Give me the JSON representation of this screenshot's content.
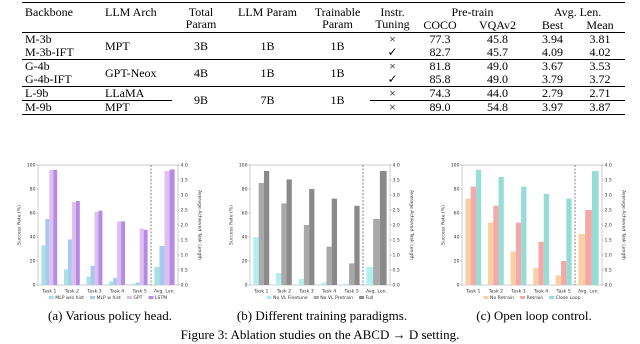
{
  "table": {
    "header": [
      "Backbone",
      "LLM Arch",
      "Total Param",
      "LLM Param",
      "Trainable Param",
      "Instr. Tuning",
      "Pre-train",
      "Avg. Len."
    ],
    "subheader": [
      "COCO",
      "VQAv2",
      "Best",
      "Mean"
    ],
    "groups": [
      [
        [
          "M-3b",
          "MPT",
          "3B",
          "1B",
          "1B",
          "×",
          "77.3",
          "45.8",
          "3.94",
          "3.81"
        ],
        [
          "M-3b-IFT",
          null,
          null,
          null,
          null,
          "✓",
          "82.7",
          "45.7",
          "4.09",
          "4.02"
        ]
      ],
      [
        [
          "G-4b",
          "GPT-Neox",
          "4B",
          "1B",
          "1B",
          "×",
          "81.8",
          "49.0",
          "3.67",
          "3.53"
        ],
        [
          "G-4b-IFT",
          null,
          null,
          null,
          null,
          "✓",
          "85.8",
          "49.0",
          "3.79",
          "3.72"
        ]
      ],
      [
        [
          "L-9b",
          "LLaMA",
          "9B",
          "7B",
          "1B",
          "×",
          "74.3",
          "44.0",
          "2.79",
          "2.71"
        ],
        [
          "M-9b",
          "MPT",
          null,
          null,
          null,
          "×",
          "89.0",
          "54.8",
          "3.97",
          "3.87"
        ]
      ]
    ]
  },
  "chart_data": [
    {
      "type": "bar",
      "caption": "(a) Various policy head.",
      "y_label": "Success Rate (%)",
      "y2_label": "Average Achieved Task Length",
      "categories": [
        "Task 1",
        "Task 2",
        "Task 3",
        "Task 4",
        "Task 5"
      ],
      "y2_category": "Avg. Len.",
      "ylim": [
        0,
        100
      ],
      "yticks": [
        0,
        20,
        40,
        60,
        80,
        100
      ],
      "y2lim": [
        0,
        4
      ],
      "y2ticks": [
        {
          "value": 0,
          "label": "0.0"
        },
        0.5,
        {
          "value": 1,
          "label": "1.0"
        },
        1.5,
        {
          "value": 2,
          "label": "2.0"
        },
        2.5,
        {
          "value": 3,
          "label": "3.0"
        },
        3.5,
        {
          "value": 4,
          "label": "4.0"
        }
      ],
      "series": [
        {
          "name": "MLP w/o hist",
          "color": "#a6e3df",
          "values": [
            33,
            13,
            7,
            3,
            1
          ],
          "y2_value": 0.6
        },
        {
          "name": "MLP w hist",
          "color": "#a9c8f0",
          "values": [
            55,
            38,
            16,
            6,
            2
          ],
          "y2_value": 1.3
        },
        {
          "name": "GPT",
          "color": "#dcc0f2",
          "values": [
            96,
            69,
            61,
            53,
            47
          ],
          "y2_value": 3.8
        },
        {
          "name": "LSTM",
          "color": "#b98ae3",
          "values": [
            96,
            70,
            62,
            53,
            46
          ],
          "y2_value": 3.85
        }
      ]
    },
    {
      "type": "bar",
      "caption": "(b) Different training paradigms.",
      "y_label": "Success Rate (%)",
      "y2_label": "Average Achieved Task Length",
      "categories": [
        "Task 1",
        "Task 2",
        "Task 3",
        "Task 4",
        "Task 5"
      ],
      "y2_category": "Avg. Len.",
      "ylim": [
        0,
        100
      ],
      "yticks": [
        0,
        20,
        40,
        60,
        80,
        100
      ],
      "y2lim": [
        0,
        4
      ],
      "y2ticks": [
        {
          "value": 0,
          "label": "0.0"
        },
        0.5,
        {
          "value": 1,
          "label": "1.0"
        },
        1.5,
        {
          "value": 2,
          "label": "2.0"
        },
        2.5,
        {
          "value": 3,
          "label": "3.0"
        },
        3.5,
        {
          "value": 4,
          "label": "4.0"
        }
      ],
      "series": [
        {
          "name": "No VL Finetune",
          "color": "#b2f0ef",
          "values": [
            40,
            10,
            5,
            2,
            1
          ],
          "y2_value": 0.6
        },
        {
          "name": "No VL Pretrain",
          "color": "#a9a9a9",
          "values": [
            85,
            68,
            50,
            32,
            18
          ],
          "y2_value": 2.2
        },
        {
          "name": "Full",
          "color": "#8a8a8a",
          "values": [
            95,
            88,
            80,
            72,
            66
          ],
          "y2_value": 3.8
        }
      ]
    },
    {
      "type": "bar",
      "caption": "(c) Open loop control.",
      "y_label": "Success Rate (%)",
      "y2_label": "Average Achieved Task Length",
      "categories": [
        "Task 1",
        "Task 2",
        "Task 3",
        "Task 4",
        "Task 5"
      ],
      "y2_category": "Avg. Len.",
      "ylim": [
        0,
        100
      ],
      "yticks": [
        0,
        20,
        40,
        60,
        80,
        100
      ],
      "y2lim": [
        0,
        4
      ],
      "y2ticks": [
        {
          "value": 0,
          "label": "0.0"
        },
        0.5,
        {
          "value": 1,
          "label": "1.0"
        },
        1.5,
        {
          "value": 2,
          "label": "2.0"
        },
        2.5,
        {
          "value": 3,
          "label": "3.0"
        },
        3.5,
        {
          "value": 4,
          "label": "4.0"
        }
      ],
      "series": [
        {
          "name": "No Retrain",
          "color": "#f8d0a4",
          "values": [
            72,
            52,
            28,
            14,
            8
          ],
          "y2_value": 1.7
        },
        {
          "name": "Retrain",
          "color": "#f5a9a6",
          "values": [
            82,
            66,
            52,
            36,
            20
          ],
          "y2_value": 2.5
        },
        {
          "name": "Close Loop",
          "color": "#98dcd8",
          "values": [
            96,
            90,
            82,
            76,
            72
          ],
          "y2_value": 3.8
        }
      ]
    }
  ],
  "figure_caption": "Figure 3: Ablation studies on the ABCD → D setting."
}
